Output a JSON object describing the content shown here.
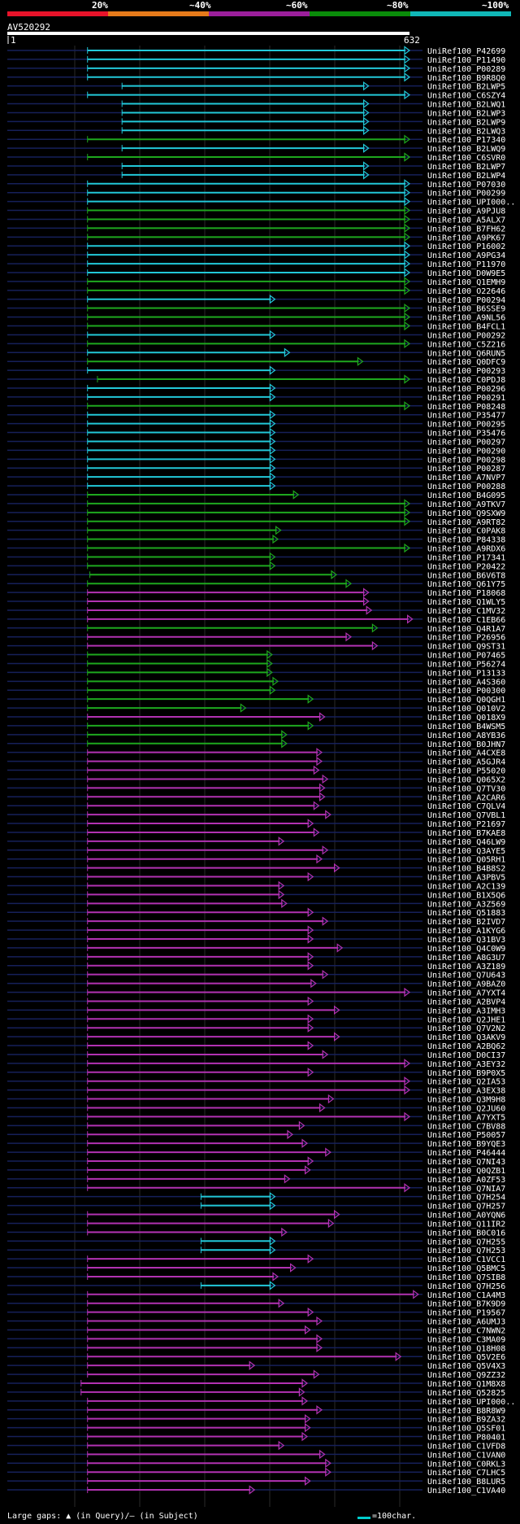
{
  "query": {
    "name": "AV520292",
    "start": "1",
    "end": "632"
  },
  "identity_scale": {
    "labels": [
      "20%",
      "~40%",
      "~60%",
      "~80%",
      "~100%"
    ],
    "colors": [
      "#E8132A",
      "#E67A1A",
      "#9C1F9C",
      "#0A8C0A",
      "#10B8B8"
    ]
  },
  "footer": {
    "gaps_text": "Large gaps: ▲ (in Query)/— (in Subject)",
    "legend_text": "=100char."
  },
  "chart_data": {
    "type": "alignment",
    "title": "AV520292",
    "query_length": 632,
    "legend": {
      "line_color": "#00CCCC",
      "chars_per_unit": 100
    },
    "hits": [
      {
        "id": "UniRef100_P42699",
        "c": "cyan",
        "s": 151,
        "e": 700
      },
      {
        "id": "UniRef100_P11490",
        "c": "cyan",
        "s": 151,
        "e": 700
      },
      {
        "id": "UniRef100_P00289",
        "c": "cyan",
        "s": 151,
        "e": 700
      },
      {
        "id": "UniRef100_B9R8Q0",
        "c": "cyan",
        "s": 151,
        "e": 700
      },
      {
        "id": "UniRef100_B2LWP5",
        "c": "cyan",
        "s": 210,
        "e": 630
      },
      {
        "id": "UniRef100_C6SZY4",
        "c": "cyan",
        "s": 151,
        "e": 700
      },
      {
        "id": "UniRef100_B2LWQ1",
        "c": "cyan",
        "s": 210,
        "e": 630
      },
      {
        "id": "UniRef100_B2LWP3",
        "c": "cyan",
        "s": 210,
        "e": 630
      },
      {
        "id": "UniRef100_B2LWP9",
        "c": "cyan",
        "s": 210,
        "e": 630
      },
      {
        "id": "UniRef100_B2LWQ3",
        "c": "cyan",
        "s": 210,
        "e": 630
      },
      {
        "id": "UniRef100_P17340",
        "c": "green",
        "s": 151,
        "e": 700
      },
      {
        "id": "UniRef100_B2LWQ9",
        "c": "cyan",
        "s": 210,
        "e": 630
      },
      {
        "id": "UniRef100_C6SVR0",
        "c": "green",
        "s": 151,
        "e": 700
      },
      {
        "id": "UniRef100_B2LWP7",
        "c": "cyan",
        "s": 210,
        "e": 630
      },
      {
        "id": "UniRef100_B2LWP4",
        "c": "cyan",
        "s": 210,
        "e": 630
      },
      {
        "id": "UniRef100_P07030",
        "c": "cyan",
        "s": 151,
        "e": 700
      },
      {
        "id": "UniRef100_P00299",
        "c": "cyan",
        "s": 151,
        "e": 700
      },
      {
        "id": "UniRef100_UPI000..",
        "c": "cyan",
        "s": 151,
        "e": 700
      },
      {
        "id": "UniRef100_A9PJU8",
        "c": "green",
        "s": 151,
        "e": 700
      },
      {
        "id": "UniRef100_A5ALX7",
        "c": "green",
        "s": 151,
        "e": 700
      },
      {
        "id": "UniRef100_B7FH62",
        "c": "green",
        "s": 151,
        "e": 700
      },
      {
        "id": "UniRef100_A9PK67",
        "c": "green",
        "s": 151,
        "e": 700
      },
      {
        "id": "UniRef100_P16002",
        "c": "cyan",
        "s": 151,
        "e": 700
      },
      {
        "id": "UniRef100_A9PG34",
        "c": "cyan",
        "s": 151,
        "e": 700
      },
      {
        "id": "UniRef100_P11970",
        "c": "cyan",
        "s": 151,
        "e": 700
      },
      {
        "id": "UniRef100_D0W9E5",
        "c": "cyan",
        "s": 151,
        "e": 700
      },
      {
        "id": "UniRef100_Q1EMH9",
        "c": "green",
        "s": 151,
        "e": 700
      },
      {
        "id": "UniRef100_O22646",
        "c": "green",
        "s": 151,
        "e": 700
      },
      {
        "id": "UniRef100_P00294",
        "c": "cyan",
        "s": 151,
        "e": 470
      },
      {
        "id": "UniRef100_B6SSE9",
        "c": "green",
        "s": 151,
        "e": 700
      },
      {
        "id": "UniRef100_A9NL56",
        "c": "green",
        "s": 151,
        "e": 700
      },
      {
        "id": "UniRef100_B4FCL1",
        "c": "green",
        "s": 151,
        "e": 700
      },
      {
        "id": "UniRef100_P00292",
        "c": "cyan",
        "s": 151,
        "e": 470
      },
      {
        "id": "UniRef100_C5Z216",
        "c": "green",
        "s": 151,
        "e": 700
      },
      {
        "id": "UniRef100_Q6RUN5",
        "c": "cyan",
        "s": 151,
        "e": 495
      },
      {
        "id": "UniRef100_Q0DFC9",
        "c": "green",
        "s": 151,
        "e": 620
      },
      {
        "id": "UniRef100_P00293",
        "c": "cyan",
        "s": 151,
        "e": 470
      },
      {
        "id": "UniRef100_C0PDJ8",
        "c": "green",
        "s": 168,
        "e": 700
      },
      {
        "id": "UniRef100_P00296",
        "c": "cyan",
        "s": 151,
        "e": 470
      },
      {
        "id": "UniRef100_P00291",
        "c": "cyan",
        "s": 151,
        "e": 470
      },
      {
        "id": "UniRef100_P08248",
        "c": "green",
        "s": 151,
        "e": 700
      },
      {
        "id": "UniRef100_P35477",
        "c": "cyan",
        "s": 151,
        "e": 470
      },
      {
        "id": "UniRef100_P00295",
        "c": "cyan",
        "s": 151,
        "e": 470
      },
      {
        "id": "UniRef100_P35476",
        "c": "cyan",
        "s": 151,
        "e": 470
      },
      {
        "id": "UniRef100_P00297",
        "c": "cyan",
        "s": 151,
        "e": 470
      },
      {
        "id": "UniRef100_P00290",
        "c": "cyan",
        "s": 151,
        "e": 470
      },
      {
        "id": "UniRef100_P00298",
        "c": "cyan",
        "s": 151,
        "e": 470
      },
      {
        "id": "UniRef100_P00287",
        "c": "cyan",
        "s": 151,
        "e": 470
      },
      {
        "id": "UniRef100_A7NVP7",
        "c": "cyan",
        "s": 151,
        "e": 470
      },
      {
        "id": "UniRef100_P00288",
        "c": "cyan",
        "s": 151,
        "e": 470
      },
      {
        "id": "UniRef100_B4G095",
        "c": "green",
        "s": 151,
        "e": 510
      },
      {
        "id": "UniRef100_A9TKV7",
        "c": "green",
        "s": 151,
        "e": 700
      },
      {
        "id": "UniRef100_Q9SXW9",
        "c": "green",
        "s": 151,
        "e": 700
      },
      {
        "id": "UniRef100_A9RT82",
        "c": "green",
        "s": 151,
        "e": 700
      },
      {
        "id": "UniRef100_C0PAK8",
        "c": "green",
        "s": 151,
        "e": 480
      },
      {
        "id": "UniRef100_P84338",
        "c": "green",
        "s": 151,
        "e": 475
      },
      {
        "id": "UniRef100_A9RDX6",
        "c": "green",
        "s": 151,
        "e": 700
      },
      {
        "id": "UniRef100_P17341",
        "c": "green",
        "s": 151,
        "e": 470
      },
      {
        "id": "UniRef100_P20422",
        "c": "green",
        "s": 151,
        "e": 470
      },
      {
        "id": "UniRef100_B6V6T8",
        "c": "green",
        "s": 155,
        "e": 575
      },
      {
        "id": "UniRef100_Q61Y75",
        "c": "green",
        "s": 151,
        "e": 600
      },
      {
        "id": "UniRef100_P18068",
        "c": "purple",
        "s": 151,
        "e": 630
      },
      {
        "id": "UniRef100_Q1WLY5",
        "c": "purple",
        "s": 151,
        "e": 630
      },
      {
        "id": "UniRef100_C1MV32",
        "c": "purple",
        "s": 151,
        "e": 635
      },
      {
        "id": "UniRef100_C1EB66",
        "c": "purple",
        "s": 151,
        "e": 705
      },
      {
        "id": "UniRef100_Q4R1A7",
        "c": "green",
        "s": 151,
        "e": 645
      },
      {
        "id": "UniRef100_P26956",
        "c": "purple",
        "s": 151,
        "e": 600
      },
      {
        "id": "UniRef100_Q9ST31",
        "c": "purple",
        "s": 151,
        "e": 645
      },
      {
        "id": "UniRef100_P07465",
        "c": "green",
        "s": 151,
        "e": 465
      },
      {
        "id": "UniRef100_P56274",
        "c": "green",
        "s": 151,
        "e": 465
      },
      {
        "id": "UniRef100_P13133",
        "c": "green",
        "s": 151,
        "e": 465
      },
      {
        "id": "UniRef100_A4S360",
        "c": "green",
        "s": 151,
        "e": 475
      },
      {
        "id": "UniRef100_P00300",
        "c": "green",
        "s": 151,
        "e": 470
      },
      {
        "id": "UniRef100_Q0QGH1",
        "c": "green",
        "s": 151,
        "e": 535
      },
      {
        "id": "UniRef100_Q010V2",
        "c": "green",
        "s": 151,
        "e": 420
      },
      {
        "id": "UniRef100_Q018X9",
        "c": "purple",
        "s": 151,
        "e": 555
      },
      {
        "id": "UniRef100_B4WSM5",
        "c": "green",
        "s": 151,
        "e": 535
      },
      {
        "id": "UniRef100_A8YB36",
        "c": "green",
        "s": 151,
        "e": 490
      },
      {
        "id": "UniRef100_B0JHN7",
        "c": "green",
        "s": 151,
        "e": 490
      },
      {
        "id": "UniRef100_A4CXE8",
        "c": "purple",
        "s": 151,
        "e": 550
      },
      {
        "id": "UniRef100_A5GJR4",
        "c": "purple",
        "s": 151,
        "e": 550
      },
      {
        "id": "UniRef100_P55020",
        "c": "purple",
        "s": 151,
        "e": 545
      },
      {
        "id": "UniRef100_Q065X2",
        "c": "purple",
        "s": 151,
        "e": 560
      },
      {
        "id": "UniRef100_Q7TV30",
        "c": "purple",
        "s": 151,
        "e": 555
      },
      {
        "id": "UniRef100_A2CAR6",
        "c": "purple",
        "s": 151,
        "e": 555
      },
      {
        "id": "UniRef100_C7QLV4",
        "c": "purple",
        "s": 151,
        "e": 545
      },
      {
        "id": "UniRef100_Q7VBL1",
        "c": "purple",
        "s": 151,
        "e": 565
      },
      {
        "id": "UniRef100_P21697",
        "c": "purple",
        "s": 151,
        "e": 535
      },
      {
        "id": "UniRef100_B7KAE8",
        "c": "purple",
        "s": 151,
        "e": 545
      },
      {
        "id": "UniRef100_Q46LW9",
        "c": "purple",
        "s": 151,
        "e": 485
      },
      {
        "id": "UniRef100_Q3AYE5",
        "c": "purple",
        "s": 151,
        "e": 560
      },
      {
        "id": "UniRef100_Q05RH1",
        "c": "purple",
        "s": 151,
        "e": 550
      },
      {
        "id": "UniRef100_B4B8S2",
        "c": "purple",
        "s": 151,
        "e": 580
      },
      {
        "id": "UniRef100_A3PBV5",
        "c": "purple",
        "s": 151,
        "e": 535
      },
      {
        "id": "UniRef100_A2C139",
        "c": "purple",
        "s": 151,
        "e": 485
      },
      {
        "id": "UniRef100_B1X5Q6",
        "c": "purple",
        "s": 151,
        "e": 485
      },
      {
        "id": "UniRef100_A3Z569",
        "c": "purple",
        "s": 151,
        "e": 490
      },
      {
        "id": "UniRef100_Q51883",
        "c": "purple",
        "s": 151,
        "e": 535
      },
      {
        "id": "UniRef100_B2IVD7",
        "c": "purple",
        "s": 151,
        "e": 560
      },
      {
        "id": "UniRef100_A1KYG6",
        "c": "purple",
        "s": 151,
        "e": 535
      },
      {
        "id": "UniRef100_Q31BV3",
        "c": "purple",
        "s": 151,
        "e": 535
      },
      {
        "id": "UniRef100_Q4C0W9",
        "c": "purple",
        "s": 151,
        "e": 585
      },
      {
        "id": "UniRef100_A8G3U7",
        "c": "purple",
        "s": 151,
        "e": 535
      },
      {
        "id": "UniRef100_A3Z189",
        "c": "purple",
        "s": 151,
        "e": 535
      },
      {
        "id": "UniRef100_Q7U643",
        "c": "purple",
        "s": 151,
        "e": 560
      },
      {
        "id": "UniRef100_A9BAZ0",
        "c": "purple",
        "s": 151,
        "e": 540
      },
      {
        "id": "UniRef100_A7YXT4",
        "c": "purple",
        "s": 151,
        "e": 700
      },
      {
        "id": "UniRef100_A2BVP4",
        "c": "purple",
        "s": 151,
        "e": 535
      },
      {
        "id": "UniRef100_A3IMH3",
        "c": "purple",
        "s": 151,
        "e": 580
      },
      {
        "id": "UniRef100_Q2JHE1",
        "c": "purple",
        "s": 151,
        "e": 535
      },
      {
        "id": "UniRef100_Q7V2N2",
        "c": "purple",
        "s": 151,
        "e": 535
      },
      {
        "id": "UniRef100_Q3AKV9",
        "c": "purple",
        "s": 151,
        "e": 580
      },
      {
        "id": "UniRef100_A2BQ62",
        "c": "purple",
        "s": 151,
        "e": 535
      },
      {
        "id": "UniRef100_D0CI37",
        "c": "purple",
        "s": 151,
        "e": 560
      },
      {
        "id": "UniRef100_A3EY32",
        "c": "purple",
        "s": 151,
        "e": 700
      },
      {
        "id": "UniRef100_B9P0X5",
        "c": "purple",
        "s": 151,
        "e": 535
      },
      {
        "id": "UniRef100_Q2IA53",
        "c": "purple",
        "s": 151,
        "e": 700
      },
      {
        "id": "UniRef100_A3EX38",
        "c": "purple",
        "s": 151,
        "e": 700
      },
      {
        "id": "UniRef100_Q3M9H8",
        "c": "purple",
        "s": 151,
        "e": 570
      },
      {
        "id": "UniRef100_Q2JU60",
        "c": "purple",
        "s": 151,
        "e": 555
      },
      {
        "id": "UniRef100_A7YXT5",
        "c": "purple",
        "s": 151,
        "e": 700
      },
      {
        "id": "UniRef100_C7BV88",
        "c": "purple",
        "s": 151,
        "e": 520
      },
      {
        "id": "UniRef100_P50057",
        "c": "purple",
        "s": 151,
        "e": 500
      },
      {
        "id": "UniRef100_B9YQE3",
        "c": "purple",
        "s": 151,
        "e": 525
      },
      {
        "id": "UniRef100_P46444",
        "c": "purple",
        "s": 151,
        "e": 565
      },
      {
        "id": "UniRef100_Q7NI43",
        "c": "purple",
        "s": 151,
        "e": 535
      },
      {
        "id": "UniRef100_Q0QZB1",
        "c": "purple",
        "s": 151,
        "e": 530
      },
      {
        "id": "UniRef100_A0ZF53",
        "c": "purple",
        "s": 151,
        "e": 495
      },
      {
        "id": "UniRef100_Q7NIA7",
        "c": "purple",
        "s": 151,
        "e": 700
      },
      {
        "id": "UniRef100_Q7H254",
        "c": "cyan",
        "s": 345,
        "e": 470
      },
      {
        "id": "UniRef100_Q7H257",
        "c": "cyan",
        "s": 345,
        "e": 470
      },
      {
        "id": "UniRef100_A0YQN6",
        "c": "purple",
        "s": 151,
        "e": 580
      },
      {
        "id": "UniRef100_Q11IR2",
        "c": "purple",
        "s": 151,
        "e": 570
      },
      {
        "id": "UniRef100_B0C016",
        "c": "purple",
        "s": 151,
        "e": 490
      },
      {
        "id": "UniRef100_Q7H255",
        "c": "cyan",
        "s": 345,
        "e": 470
      },
      {
        "id": "UniRef100_Q7H253",
        "c": "cyan",
        "s": 345,
        "e": 470
      },
      {
        "id": "UniRef100_C1VCC1",
        "c": "purple",
        "s": 151,
        "e": 535
      },
      {
        "id": "UniRef100_Q5BMC5",
        "c": "purple",
        "s": 151,
        "e": 505
      },
      {
        "id": "UniRef100_Q7SIB8",
        "c": "purple",
        "s": 151,
        "e": 475
      },
      {
        "id": "UniRef100_Q7H256",
        "c": "cyan",
        "s": 345,
        "e": 470
      },
      {
        "id": "UniRef100_C1A4M3",
        "c": "purple",
        "s": 151,
        "e": 715
      },
      {
        "id": "UniRef100_B7K9D9",
        "c": "purple",
        "s": 151,
        "e": 485
      },
      {
        "id": "UniRef100_P19567",
        "c": "purple",
        "s": 151,
        "e": 535
      },
      {
        "id": "UniRef100_A6UMJ3",
        "c": "purple",
        "s": 151,
        "e": 550
      },
      {
        "id": "UniRef100_C7NWN2",
        "c": "purple",
        "s": 151,
        "e": 530
      },
      {
        "id": "UniRef100_C3MA09",
        "c": "purple",
        "s": 151,
        "e": 550
      },
      {
        "id": "UniRef100_Q18H08",
        "c": "purple",
        "s": 151,
        "e": 550
      },
      {
        "id": "UniRef100_Q5V2E6",
        "c": "purple",
        "s": 151,
        "e": 685
      },
      {
        "id": "UniRef100_Q5V4X3",
        "c": "purple",
        "s": 151,
        "e": 435
      },
      {
        "id": "UniRef100_Q9ZZ32",
        "c": "purple",
        "s": 151,
        "e": 545
      },
      {
        "id": "UniRef100_Q1M8X8",
        "c": "purple",
        "s": 140,
        "e": 525
      },
      {
        "id": "UniRef100_Q52825",
        "c": "purple",
        "s": 140,
        "e": 520
      },
      {
        "id": "UniRef100_UPI000..",
        "c": "purple",
        "s": 151,
        "e": 525
      },
      {
        "id": "UniRef100_B8R8W9",
        "c": "purple",
        "s": 151,
        "e": 550
      },
      {
        "id": "UniRef100_B9ZA32",
        "c": "purple",
        "s": 151,
        "e": 530
      },
      {
        "id": "UniRef100_Q5SF01",
        "c": "purple",
        "s": 151,
        "e": 530
      },
      {
        "id": "UniRef100_P80401",
        "c": "purple",
        "s": 151,
        "e": 525
      },
      {
        "id": "UniRef100_C1VFD8",
        "c": "purple",
        "s": 151,
        "e": 485
      },
      {
        "id": "UniRef100_C1VAN0",
        "c": "purple",
        "s": 151,
        "e": 555
      },
      {
        "id": "UniRef100_C0RKL3",
        "c": "purple",
        "s": 151,
        "e": 565
      },
      {
        "id": "UniRef100_C7LHC5",
        "c": "purple",
        "s": 151,
        "e": 565
      },
      {
        "id": "UniRef100_B8LUR5",
        "c": "purple",
        "s": 151,
        "e": 530
      },
      {
        "id": "UniRef100_C1VA40",
        "c": "purple",
        "s": 151,
        "e": 435
      }
    ]
  }
}
